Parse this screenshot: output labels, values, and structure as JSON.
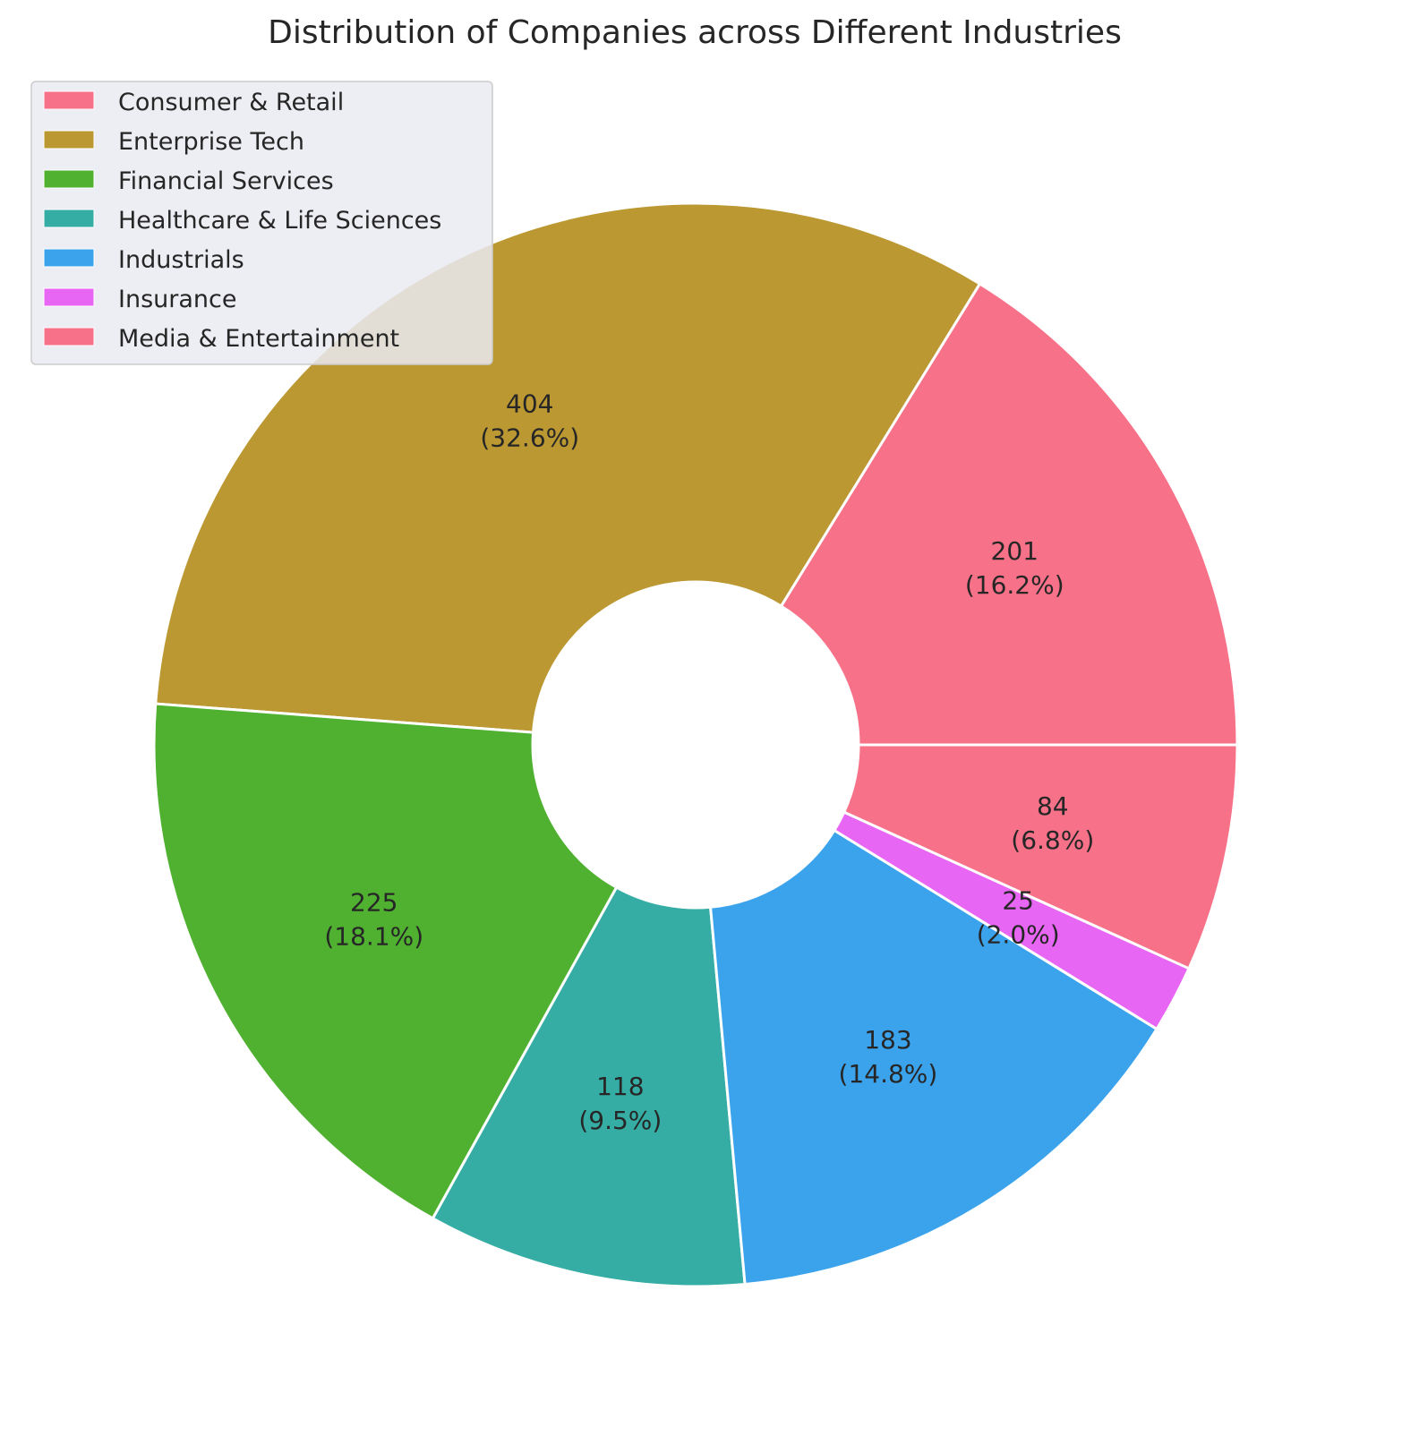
{
  "chart_data": {
    "type": "pie",
    "donut": true,
    "title": "Distribution of Companies across Different Industries",
    "start_angle_deg": 0,
    "direction": "counterclockwise",
    "slices": [
      {
        "label": "Consumer & Retail",
        "value": 201,
        "percent_label": "(16.2%)",
        "color": "#f77189"
      },
      {
        "label": "Enterprise Tech",
        "value": 404,
        "percent_label": "(32.6%)",
        "color": "#bb9832"
      },
      {
        "label": "Financial Services",
        "value": 225,
        "percent_label": "(18.1%)",
        "color": "#50b131"
      },
      {
        "label": "Healthcare & Life Sciences",
        "value": 118,
        "percent_label": "(9.5%)",
        "color": "#36ada4"
      },
      {
        "label": "Industrials",
        "value": 183,
        "percent_label": "(14.8%)",
        "color": "#3ba3ec"
      },
      {
        "label": "Insurance",
        "value": 25,
        "percent_label": "(2.0%)",
        "color": "#e866f4"
      },
      {
        "label": "Media & Entertainment",
        "value": 84,
        "percent_label": "(6.8%)",
        "color": "#f77189"
      }
    ],
    "legend_position": "upper-left"
  }
}
